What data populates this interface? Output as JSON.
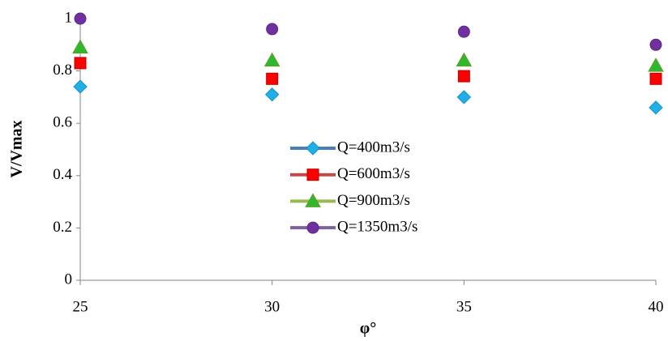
{
  "chart_data": {
    "type": "scatter",
    "x_label": "φ°",
    "y_label": "V/Vmax",
    "xlim": [
      25,
      40
    ],
    "xticks": [
      25,
      30,
      35,
      40
    ],
    "ylim": [
      0,
      1
    ],
    "yticks": [
      0,
      0.2,
      0.4,
      0.6,
      0.8,
      1
    ],
    "grid": false,
    "legend_position": "center",
    "x": [
      25,
      30,
      35,
      40
    ],
    "series": [
      {
        "name": "Q=400m3/s",
        "marker": "diamond",
        "color": "#1fb0ea",
        "line_color": "#4a7ebb",
        "values": [
          0.74,
          0.71,
          0.7,
          0.66
        ]
      },
      {
        "name": "Q=600m3/s",
        "marker": "square",
        "color": "#ff0000",
        "line_color": "#be4b48",
        "values": [
          0.83,
          0.77,
          0.78,
          0.77
        ]
      },
      {
        "name": "Q=900m3/s",
        "marker": "triangle",
        "color": "#2eb82e",
        "line_color": "#98b954",
        "values": [
          0.89,
          0.84,
          0.84,
          0.82
        ]
      },
      {
        "name": "Q=1350m3/s",
        "marker": "circle",
        "color": "#7030a0",
        "line_color": "#7d60a0",
        "values": [
          1,
          0.96,
          0.95,
          0.9
        ]
      }
    ]
  }
}
